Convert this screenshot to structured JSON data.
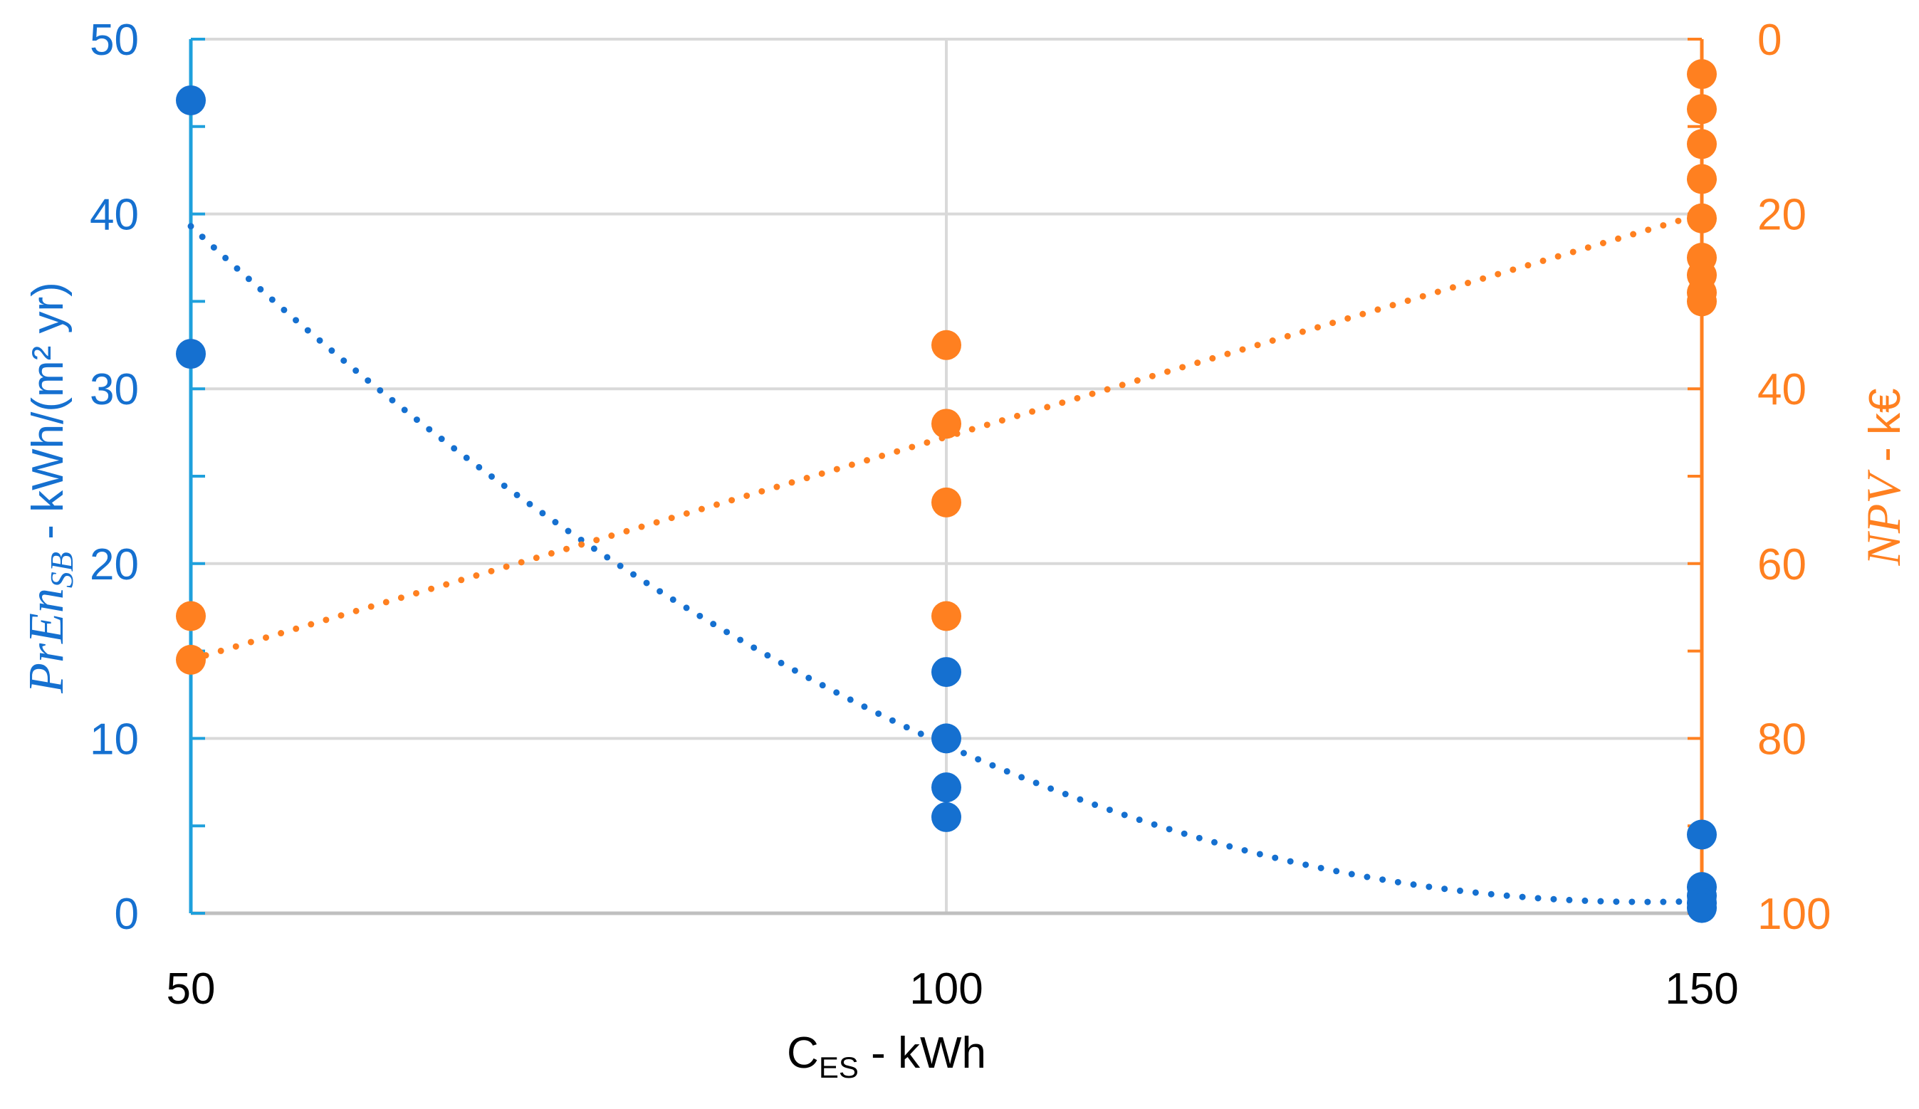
{
  "chart_data": {
    "type": "scatter",
    "x": {
      "label_main": "C",
      "label_sub": "ES",
      "label_rest": " - kWh",
      "range": [
        50,
        150
      ],
      "ticks": [
        "50",
        "100",
        "150"
      ],
      "tick_values": [
        50,
        100,
        150
      ]
    },
    "y_left": {
      "label_italic": "PrEn",
      "label_sub": "SB",
      "label_rest": " - kWh/(m² yr)",
      "range": [
        0,
        50
      ],
      "ticks": [
        "0",
        "10",
        "20",
        "30",
        "40",
        "50"
      ],
      "tick_values": [
        0,
        10,
        20,
        30,
        40,
        50
      ],
      "color": "#1570D0",
      "axis_line_color": "#1FA0DC"
    },
    "y_right": {
      "label_italic": "NPV",
      "label_rest": " - k€",
      "range": [
        0,
        100
      ],
      "inverted": true,
      "ticks": [
        "0",
        "20",
        "40",
        "60",
        "80",
        "100"
      ],
      "tick_values": [
        0,
        20,
        40,
        60,
        80,
        100
      ],
      "color": "#FF8020"
    },
    "series": [
      {
        "name": "PrEn_SB",
        "axis": "left",
        "color": "#1570D0",
        "points": [
          [
            50,
            46.5
          ],
          [
            50,
            32
          ],
          [
            100,
            13.8
          ],
          [
            100,
            10
          ],
          [
            100,
            7.2
          ],
          [
            100,
            5.5
          ],
          [
            150,
            4.5
          ],
          [
            150,
            1.5
          ],
          [
            150,
            1.0
          ],
          [
            150,
            0.6
          ],
          [
            150,
            0.3
          ]
        ],
        "trendline": {
          "type": "polynomial",
          "points": [
            [
              50,
              39.3
            ],
            [
              100,
              9.6
            ],
            [
              150,
              0.7
            ]
          ]
        }
      },
      {
        "name": "NPV",
        "axis": "right",
        "color": "#FF8020",
        "points": [
          [
            50,
            66
          ],
          [
            50,
            71
          ],
          [
            100,
            35
          ],
          [
            100,
            44
          ],
          [
            100,
            53
          ],
          [
            100,
            66
          ],
          [
            150,
            4
          ],
          [
            150,
            8
          ],
          [
            150,
            12
          ],
          [
            150,
            16
          ],
          [
            150,
            20.5
          ],
          [
            150,
            25
          ],
          [
            150,
            27
          ],
          [
            150,
            29
          ],
          [
            150,
            30
          ]
        ],
        "trendline": {
          "type": "linear",
          "points": [
            [
              50,
              71
            ],
            [
              150,
              20
            ]
          ]
        }
      }
    ],
    "colors": {
      "grid": "#D9D9D9",
      "x_axis": "#BFBFBF",
      "x_text": "#000000"
    }
  }
}
